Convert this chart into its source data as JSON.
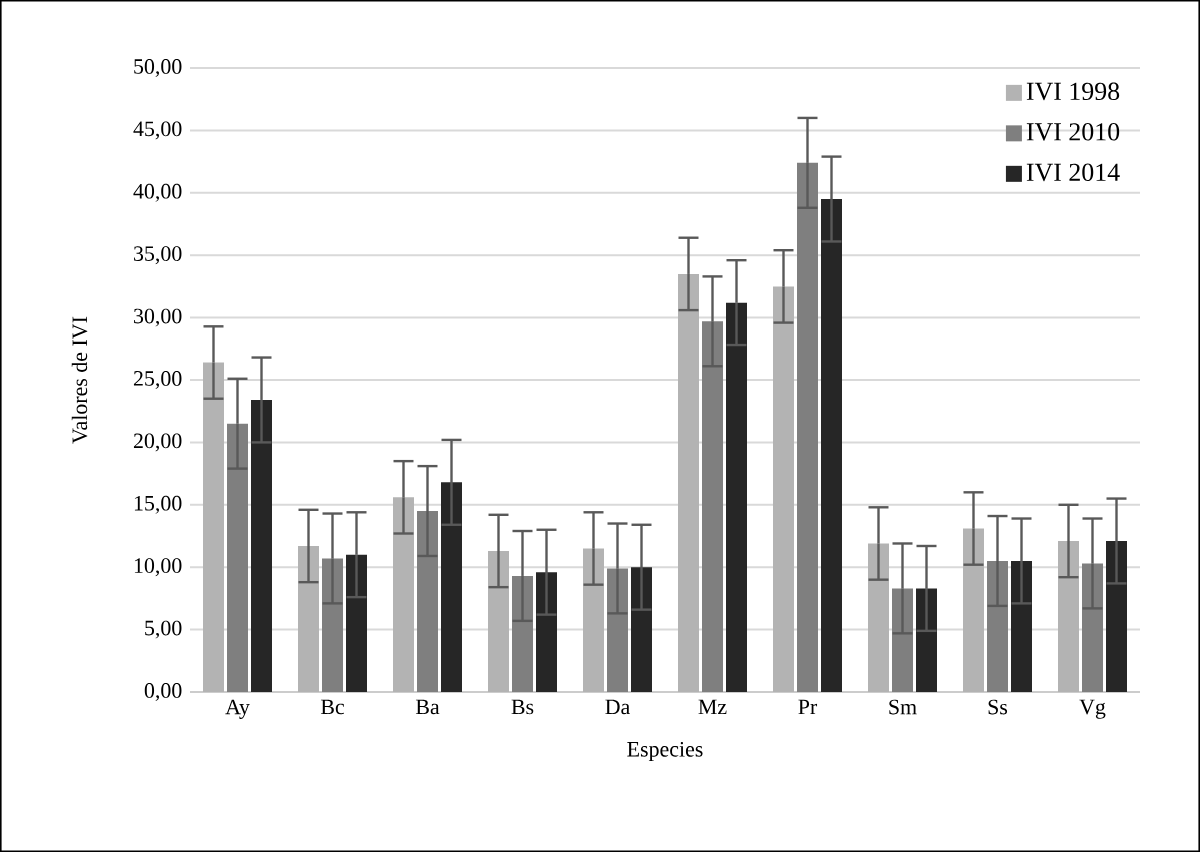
{
  "chart_data": {
    "type": "bar",
    "xlabel": "Especies",
    "ylabel": "Valores de IVI",
    "categories": [
      "Ay",
      "Bc",
      "Ba",
      "Bs",
      "Da",
      "Mz",
      "Pr",
      "Sm",
      "Ss",
      "Vg"
    ],
    "series": [
      {
        "name": "IVI 1998",
        "color": "#b3b3b3",
        "values": [
          26.4,
          11.7,
          15.6,
          11.3,
          11.5,
          33.5,
          32.5,
          11.9,
          13.1,
          12.1
        ],
        "errors": [
          2.9,
          2.9,
          2.9,
          2.9,
          2.9,
          2.9,
          2.9,
          2.9,
          2.9,
          2.9
        ]
      },
      {
        "name": "IVI 2010",
        "color": "#7f7f7f",
        "values": [
          21.5,
          10.7,
          14.5,
          9.3,
          9.9,
          29.7,
          42.4,
          8.3,
          10.5,
          10.3
        ],
        "errors": [
          3.6,
          3.6,
          3.6,
          3.6,
          3.6,
          3.6,
          3.6,
          3.6,
          3.6,
          3.6
        ]
      },
      {
        "name": "IVI 2014",
        "color": "#262626",
        "values": [
          23.4,
          11.0,
          16.8,
          9.6,
          10.0,
          31.2,
          39.5,
          8.3,
          10.5,
          12.1
        ],
        "errors": [
          3.4,
          3.4,
          3.4,
          3.4,
          3.4,
          3.4,
          3.4,
          3.4,
          3.4,
          3.4
        ]
      }
    ],
    "ylim": [
      0,
      50
    ],
    "yticks": [
      {
        "value": 0,
        "label": "0,00"
      },
      {
        "value": 5,
        "label": "5,00"
      },
      {
        "value": 10,
        "label": "10,00"
      },
      {
        "value": 15,
        "label": "15,00"
      },
      {
        "value": 20,
        "label": "20,00"
      },
      {
        "value": 25,
        "label": "25,00"
      },
      {
        "value": 30,
        "label": "30,00"
      },
      {
        "value": 35,
        "label": "35,00"
      },
      {
        "value": 40,
        "label": "40,00"
      },
      {
        "value": 45,
        "label": "45,00"
      },
      {
        "value": 50,
        "label": "50,00"
      }
    ],
    "grid": "y",
    "legend": "top right"
  }
}
